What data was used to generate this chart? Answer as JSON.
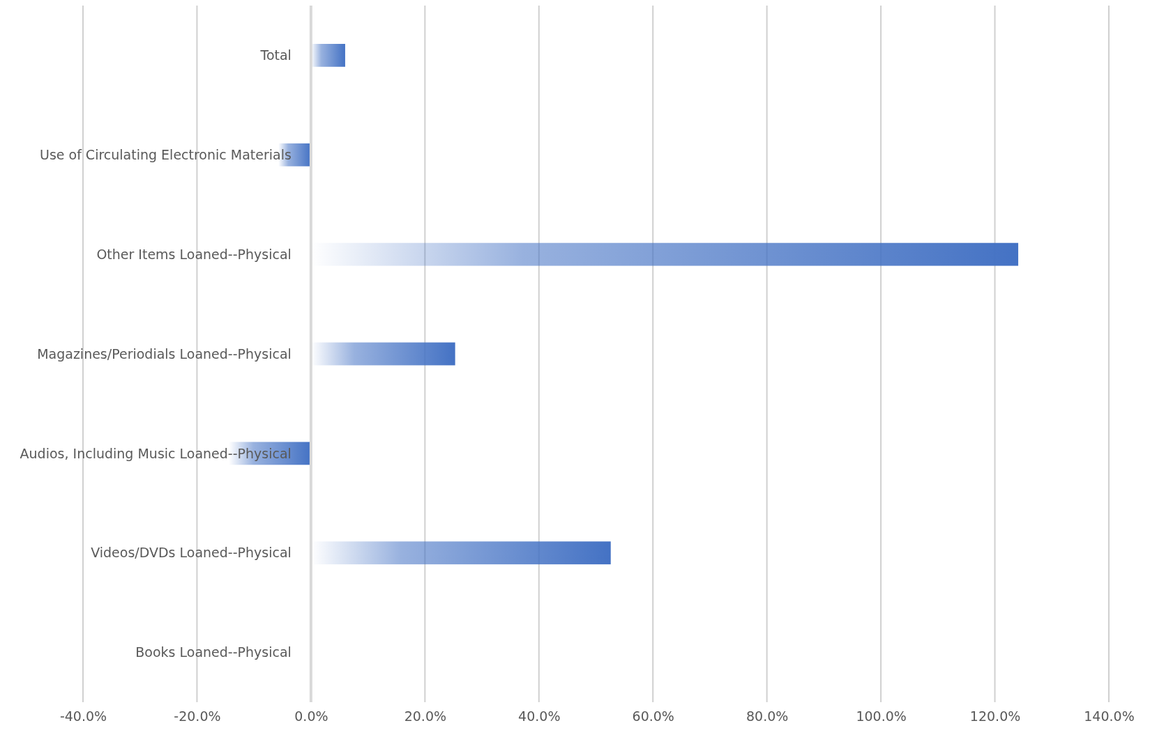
{
  "chart_data": {
    "type": "bar",
    "orientation": "horizontal",
    "categories": [
      "Total",
      "Use of Circulating Electronic Materials",
      "Other Items Loaned--Physical",
      "Magazines/Periodials Loaned--Physical",
      "Audios, Including Music  Loaned--Physical",
      "Videos/DVDs Loaned--Physical",
      "Books Loaned--Physical"
    ],
    "values": [
      6.0,
      -5.7,
      124.1,
      25.3,
      -14.4,
      52.6,
      0
    ],
    "color": "#4472c4",
    "xlim": [
      -40,
      140
    ],
    "xticks": [
      {
        "value": -40,
        "label": "-40.0%"
      },
      {
        "value": -20,
        "label": "-20.0%"
      },
      {
        "value": 0,
        "label": "0.0%"
      },
      {
        "value": 20,
        "label": "20.0%"
      },
      {
        "value": 40,
        "label": "40.0%"
      },
      {
        "value": 60,
        "label": "60.0%"
      },
      {
        "value": 80,
        "label": "80.0%"
      },
      {
        "value": 100,
        "label": "100.0%"
      },
      {
        "value": 120,
        "label": "120.0%"
      },
      {
        "value": 140,
        "label": "140.0%"
      }
    ],
    "grid": "x"
  }
}
